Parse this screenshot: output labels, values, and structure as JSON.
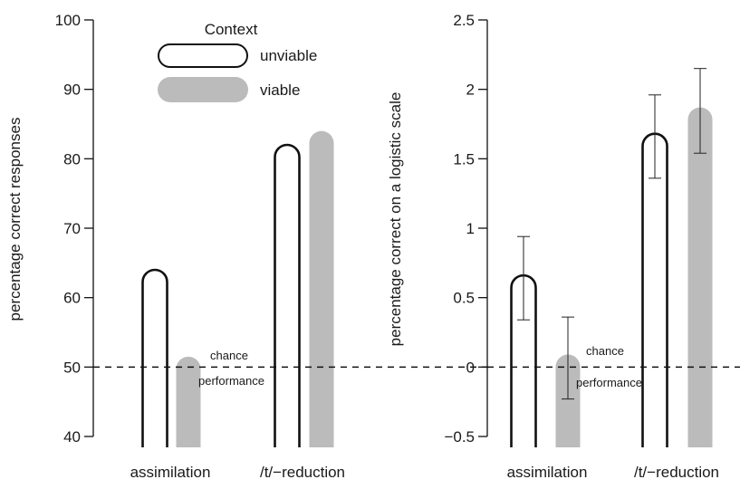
{
  "colors": {
    "unviable_fill": "#ffffff",
    "unviable_stroke": "#111111",
    "viable_fill": "#bbbbbb",
    "axis": "#111111",
    "reference_line": "#111111"
  },
  "legend": {
    "title": "Context",
    "items": [
      {
        "label": "unviable",
        "style": "outline"
      },
      {
        "label": "viable",
        "style": "filled"
      }
    ]
  },
  "annotation": {
    "line1": "chance",
    "line2": "performance"
  },
  "chart_data": [
    {
      "type": "bar",
      "categories": [
        "assimilation",
        "/t/−reduction"
      ],
      "series": [
        {
          "name": "unviable",
          "values": [
            64,
            82
          ]
        },
        {
          "name": "viable",
          "values": [
            51.5,
            84
          ]
        }
      ],
      "ylabel": "percentage correct responses",
      "xlabel": "",
      "ylim": [
        40,
        100
      ],
      "yticks": [
        40,
        50,
        60,
        70,
        80,
        90,
        100
      ],
      "ytick_labels": [
        "40",
        "50",
        "60",
        "70",
        "80",
        "90",
        "100"
      ],
      "reference_line": {
        "y": 50,
        "style": "dashed",
        "label": "chance performance"
      },
      "legend_position": "top-center",
      "grid": false
    },
    {
      "type": "bar",
      "categories": [
        "assimilation",
        "/t/−reduction"
      ],
      "series": [
        {
          "name": "unviable",
          "values": [
            0.66,
            1.68
          ],
          "error_low": [
            0.34,
            1.36
          ],
          "error_high": [
            0.94,
            1.96
          ]
        },
        {
          "name": "viable",
          "values": [
            0.09,
            1.87
          ],
          "error_low": [
            -0.23,
            1.54
          ],
          "error_high": [
            0.36,
            2.15
          ]
        }
      ],
      "ylabel": "percentage correct on a logistic scale",
      "xlabel": "",
      "ylim": [
        -0.5,
        2.5
      ],
      "yticks": [
        -0.5,
        0,
        0.5,
        1,
        1.5,
        2,
        2.5
      ],
      "ytick_labels": [
        "−0.5",
        "0",
        "0.5",
        "1",
        "1.5",
        "2",
        "2.5"
      ],
      "reference_line": {
        "y": 0,
        "style": "dashed",
        "label": "chance performance"
      },
      "grid": false
    }
  ]
}
